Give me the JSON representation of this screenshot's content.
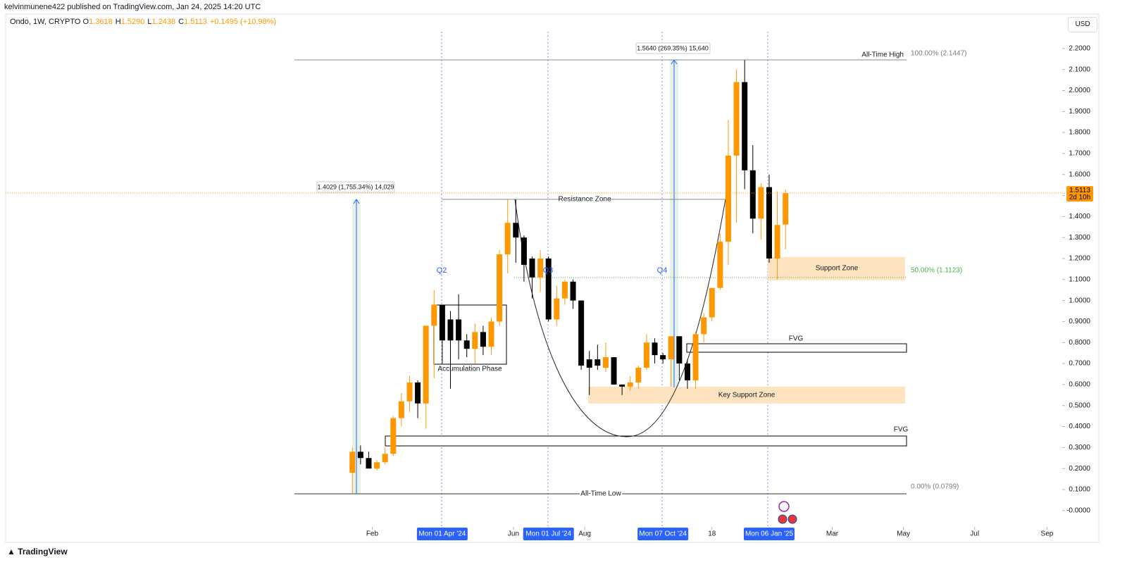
{
  "header": {
    "publisher": "kelvinmunene422 published on TradingView.com, Jan 24, 2025 14:20 UTC",
    "currency": "USD",
    "brand": "TradingView"
  },
  "chart_data": {
    "type": "candlestick",
    "title": "Ondo, 1W, CRYPTO",
    "ohlc_legend": [
      {
        "key": "O",
        "value": "1.3618"
      },
      {
        "key": "H",
        "value": "1.5290"
      },
      {
        "key": "L",
        "value": "1.2438"
      },
      {
        "key": "C",
        "value": "1.5113"
      }
    ],
    "change": "+0.1495 (+10.98%)",
    "x": [
      "2024-01-15",
      "2024-01-22",
      "2024-01-29",
      "2024-02-05",
      "2024-02-12",
      "2024-02-19",
      "2024-02-26",
      "2024-03-04",
      "2024-03-11",
      "2024-03-18",
      "2024-03-25",
      "2024-04-01",
      "2024-04-08",
      "2024-04-15",
      "2024-04-22",
      "2024-04-29",
      "2024-05-06",
      "2024-05-13",
      "2024-05-20",
      "2024-05-27",
      "2024-06-03",
      "2024-06-10",
      "2024-06-17",
      "2024-06-24",
      "2024-07-01",
      "2024-07-08",
      "2024-07-15",
      "2024-07-22",
      "2024-07-29",
      "2024-08-05",
      "2024-08-12",
      "2024-08-19",
      "2024-08-26",
      "2024-09-02",
      "2024-09-09",
      "2024-09-16",
      "2024-09-23",
      "2024-09-30",
      "2024-10-07",
      "2024-10-14",
      "2024-10-21",
      "2024-10-28",
      "2024-11-04",
      "2024-11-11",
      "2024-11-18",
      "2024-11-25",
      "2024-12-02",
      "2024-12-09",
      "2024-12-16",
      "2024-12-23",
      "2024-12-30",
      "2025-01-06",
      "2025-01-13",
      "2025-01-20"
    ],
    "open": [
      0.18,
      0.28,
      0.25,
      0.2,
      0.23,
      0.27,
      0.44,
      0.52,
      0.61,
      0.51,
      0.88,
      0.98,
      0.91,
      0.91,
      0.81,
      0.77,
      0.85,
      0.78,
      0.9,
      1.22,
      1.37,
      1.3,
      1.2,
      1.11,
      1.2,
      0.91,
      1.01,
      1.09,
      1.0,
      0.72,
      0.72,
      0.68,
      0.73,
      0.6,
      0.59,
      0.61,
      0.68,
      0.8,
      0.74,
      0.72,
      0.83,
      0.7,
      0.62,
      0.84,
      0.92,
      1.06,
      1.28,
      1.69,
      2.04,
      1.62,
      1.39,
      1.54,
      1.2,
      1.3618
    ],
    "high": [
      0.3,
      0.31,
      0.28,
      0.24,
      0.3,
      0.45,
      0.56,
      0.64,
      0.62,
      0.88,
      1.05,
      0.98,
      0.95,
      1.03,
      0.84,
      0.89,
      0.88,
      0.92,
      1.24,
      1.48,
      1.48,
      1.31,
      1.21,
      1.24,
      1.21,
      1.07,
      1.1,
      1.1,
      1.0,
      0.76,
      0.79,
      0.8,
      0.73,
      0.6,
      0.64,
      0.69,
      0.84,
      0.82,
      0.75,
      0.83,
      0.83,
      0.72,
      0.85,
      0.94,
      1.06,
      1.32,
      1.86,
      2.1,
      2.1447,
      1.74,
      1.56,
      1.6,
      1.52,
      1.529
    ],
    "low": [
      0.0799,
      0.22,
      0.2,
      0.19,
      0.22,
      0.26,
      0.4,
      0.47,
      0.44,
      0.39,
      0.63,
      0.7,
      0.58,
      0.72,
      0.73,
      0.7,
      0.74,
      0.74,
      0.88,
      1.13,
      1.18,
      1.09,
      1.01,
      1.04,
      0.9,
      0.88,
      0.98,
      0.96,
      0.67,
      0.55,
      0.67,
      0.66,
      0.6,
      0.55,
      0.57,
      0.58,
      0.67,
      0.7,
      0.7,
      0.59,
      0.62,
      0.58,
      0.58,
      0.8,
      0.9,
      1.05,
      1.17,
      1.37,
      1.53,
      1.32,
      1.29,
      1.18,
      1.1,
      1.2438
    ],
    "close": [
      0.28,
      0.25,
      0.2,
      0.23,
      0.27,
      0.44,
      0.52,
      0.61,
      0.51,
      0.88,
      0.98,
      0.81,
      0.81,
      0.81,
      0.77,
      0.85,
      0.78,
      0.9,
      1.22,
      1.37,
      1.3,
      1.17,
      1.11,
      1.2,
      0.91,
      1.01,
      1.09,
      1.0,
      0.69,
      0.68,
      0.69,
      0.73,
      0.6,
      0.59,
      0.61,
      0.68,
      0.8,
      0.74,
      0.72,
      0.83,
      0.7,
      0.62,
      0.84,
      0.92,
      1.06,
      1.28,
      1.69,
      2.04,
      1.62,
      1.39,
      1.54,
      1.2,
      1.36,
      1.5113
    ],
    "up_color": "#ff9800",
    "down_color": "#000000",
    "last_price_label": "1.5113",
    "countdown": "2d 10h",
    "ylim": [
      -0.145,
      2.28
    ],
    "yticks": [
      {
        "value": 0,
        "label": "-0.0000"
      },
      {
        "value": 0.1,
        "label": "0.1000"
      },
      {
        "value": 0.2,
        "label": "0.2000"
      },
      {
        "value": 0.3,
        "label": "0.3000"
      },
      {
        "value": 0.4,
        "label": "0.4000"
      },
      {
        "value": 0.5,
        "label": "0.5000"
      },
      {
        "value": 0.6,
        "label": "0.6000"
      },
      {
        "value": 0.7,
        "label": "0.7000"
      },
      {
        "value": 0.8,
        "label": "0.8000"
      },
      {
        "value": 0.9,
        "label": "0.9000"
      },
      {
        "value": 1.0,
        "label": "1.0000"
      },
      {
        "value": 1.1,
        "label": "1.1000"
      },
      {
        "value": 1.2,
        "label": "1.2000"
      },
      {
        "value": 1.3,
        "label": "1.3000"
      },
      {
        "value": 1.4,
        "label": "1.4000"
      },
      {
        "value": 1.5,
        "label": "1.5000"
      },
      {
        "value": 1.6,
        "label": "1.6000"
      },
      {
        "value": 1.7,
        "label": "1.7000"
      },
      {
        "value": 1.8,
        "label": "1.8000"
      },
      {
        "value": 1.9,
        "label": "1.9000"
      },
      {
        "value": 2.0,
        "label": "2.0000"
      },
      {
        "value": 2.1,
        "label": "2.1000"
      },
      {
        "value": 2.2,
        "label": "2.2000"
      }
    ],
    "xlim": [
      "2023-03-24",
      "2025-09-14"
    ],
    "xticks": [
      {
        "value": "2024-02-01",
        "label": "Feb"
      },
      {
        "value": "2024-04-01",
        "label": "Mon 01 Apr '24",
        "highlight": true
      },
      {
        "value": "2024-06-01",
        "label": "Jun"
      },
      {
        "value": "2024-07-01",
        "label": "Mon 01 Jul '24",
        "highlight": true
      },
      {
        "value": "2024-08-01",
        "label": "Aug"
      },
      {
        "value": "2024-10-07",
        "label": "Mon 07 Oct '24",
        "highlight": true
      },
      {
        "value": "2024-11-18",
        "label": "18"
      },
      {
        "value": "2025-01-06",
        "label": "Mon 06 Jan '25",
        "highlight": true
      },
      {
        "value": "2025-03-01",
        "label": "Mar"
      },
      {
        "value": "2025-05-01",
        "label": "May"
      },
      {
        "value": "2025-07-01",
        "label": "Jul"
      },
      {
        "value": "2025-09-01",
        "label": "Sep"
      }
    ],
    "annotations": {
      "ath": "All-Time High",
      "ath_fib": "100.00% (2.1447)",
      "atl": "All-Time Low",
      "atl_fib": "0.00% (0.0799)",
      "mid_fib": "50.00% (1.1123)",
      "resistance": "Resistance Zone",
      "support": "Support Zone",
      "key_support": "Key Support Zone",
      "fvg_top": "FVG",
      "fvg_bottom": "FVG",
      "accumulation": "Accumulation Phase",
      "q2": "Q2",
      "q3": "Q3",
      "q4": "Q4",
      "measure1": "1.4029 (1,755.34%) 14,029",
      "measure2": "1.5640 (269.35%) 15,640"
    }
  }
}
